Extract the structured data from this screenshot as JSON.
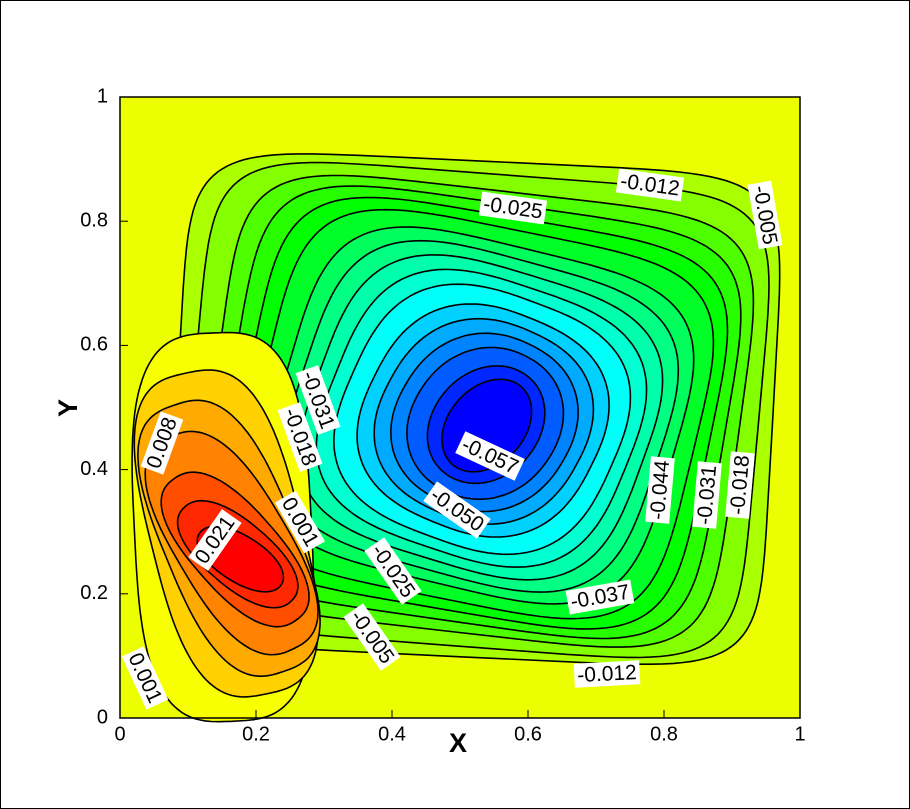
{
  "chart_data": {
    "type": "contour",
    "x_label": "X",
    "y_label": "Y",
    "xlim": [
      0,
      1
    ],
    "ylim": [
      0,
      1
    ],
    "xticks": [
      0,
      0.2,
      0.4,
      0.6,
      0.8,
      1
    ],
    "yticks": [
      0,
      0.2,
      0.4,
      0.6,
      0.8,
      1
    ],
    "levels": [
      -0.005,
      -0.008,
      -0.012,
      -0.015,
      -0.018,
      -0.021,
      -0.025,
      -0.028,
      -0.031,
      -0.034,
      -0.037,
      -0.041,
      -0.044,
      -0.047,
      -0.05,
      -0.054,
      -0.057,
      0.001,
      0.005,
      0.008,
      0.011,
      0.015,
      0.018,
      0.021
    ],
    "contour_labels": [
      -0.012,
      -0.025,
      -0.005,
      -0.031,
      -0.018,
      0.008,
      {
        "value": -0.057,
        "label": "-0.057"
      },
      {
        "value": -0.05,
        "label": "-0.050"
      },
      -0.044,
      -0.031,
      -0.018,
      0.001,
      0.021,
      -0.025,
      -0.037,
      -0.005,
      -0.012,
      0.001
    ]
  }
}
